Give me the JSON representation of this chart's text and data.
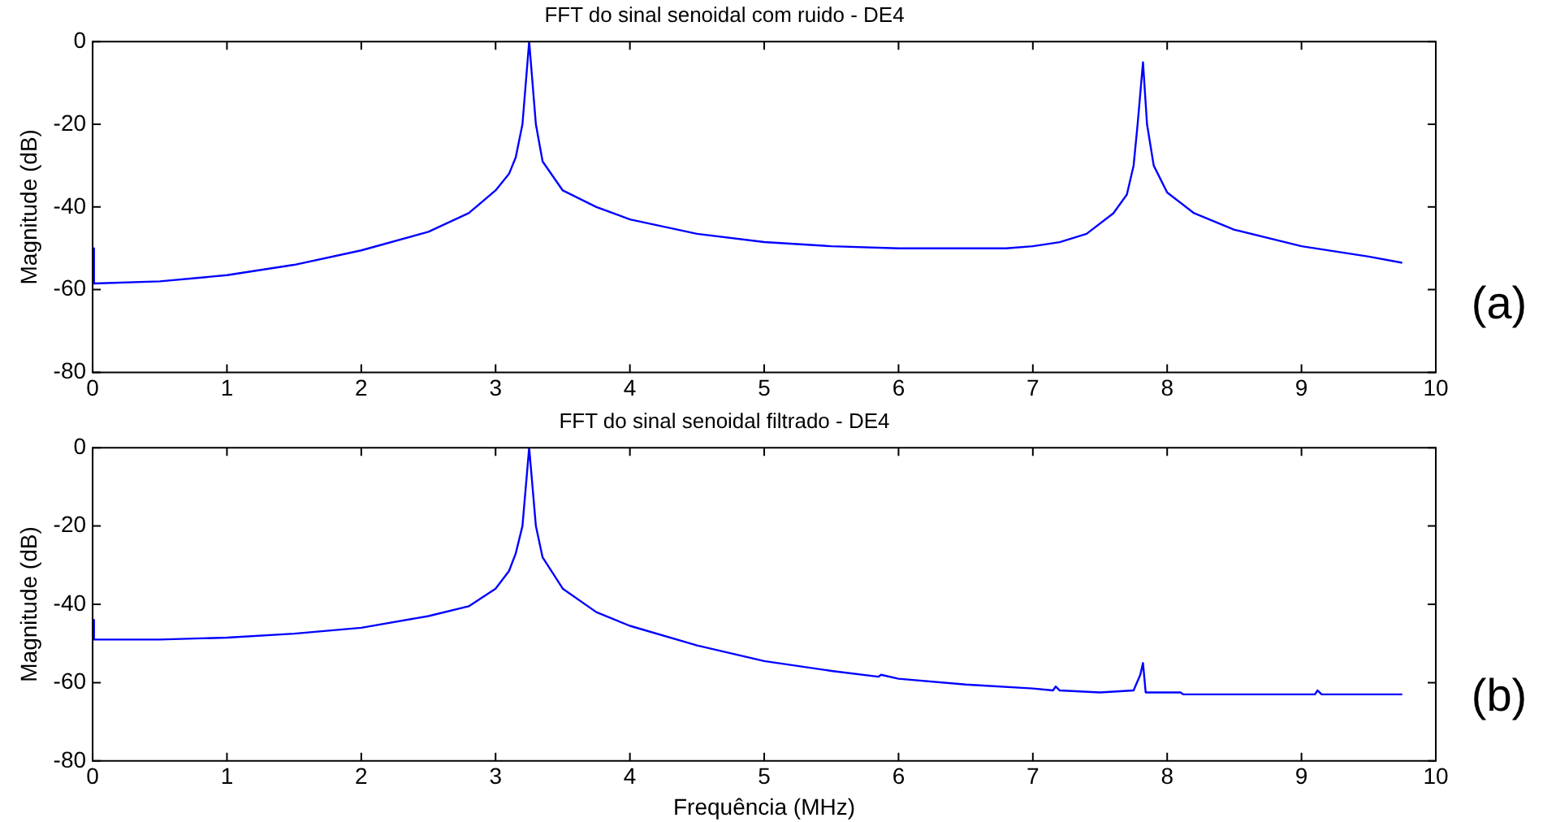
{
  "chart_data": [
    {
      "type": "line",
      "title": "FFT do sinal senoidal com ruido - DE4",
      "ylabel": "Magnitude (dB)",
      "annotations": [
        "(a)"
      ],
      "color": "#0000ff",
      "grid": false,
      "legend": false,
      "marker": "none",
      "line_style": "solid",
      "x": [
        0,
        0.01,
        0.5,
        1,
        1.5,
        2,
        2.5,
        2.8,
        3.0,
        3.1,
        3.15,
        3.2,
        3.25,
        3.3,
        3.35,
        3.5,
        3.75,
        4,
        4.5,
        5,
        5.5,
        6,
        6.5,
        6.8,
        7,
        7.2,
        7.4,
        7.6,
        7.7,
        7.75,
        7.78,
        7.82,
        7.85,
        7.9,
        8,
        8.2,
        8.5,
        9,
        9.5,
        9.75
      ],
      "values": [
        -50,
        -58.5,
        -58,
        -56.5,
        -54,
        -50.5,
        -46,
        -41.5,
        -36,
        -32,
        -28,
        -20,
        0,
        -20,
        -29,
        -36,
        -40,
        -43,
        -46.5,
        -48.5,
        -49.5,
        -50,
        -50,
        -50,
        -49.5,
        -48.5,
        -46.5,
        -41.5,
        -37,
        -30,
        -20,
        -5,
        -20,
        -30,
        -36.5,
        -41.5,
        -45.5,
        -49.5,
        -52,
        -53.5
      ],
      "xlim": [
        0,
        10
      ],
      "xticks": [
        0,
        1,
        2,
        3,
        4,
        5,
        6,
        7,
        8,
        9,
        10
      ],
      "ylim": [
        -80,
        0
      ],
      "yticks": [
        -80,
        -60,
        -40,
        -20,
        0
      ]
    },
    {
      "type": "line",
      "title": "FFT do sinal senoidal filtrado - DE4",
      "xlabel": "Frequência (MHz)",
      "ylabel": "Magnitude (dB)",
      "annotations": [
        "(b)"
      ],
      "color": "#0000ff",
      "grid": false,
      "legend": false,
      "marker": "none",
      "line_style": "solid",
      "x": [
        0,
        0.01,
        0.5,
        1,
        1.5,
        2,
        2.5,
        2.8,
        3.0,
        3.1,
        3.15,
        3.2,
        3.25,
        3.3,
        3.35,
        3.5,
        3.75,
        4,
        4.5,
        5,
        5.5,
        5.85,
        5.87,
        6,
        6.5,
        7,
        7.15,
        7.17,
        7.2,
        7.5,
        7.75,
        7.8,
        7.82,
        7.84,
        8.1,
        8.12,
        9.1,
        9.12,
        9.15,
        9.75
      ],
      "values": [
        -44,
        -49,
        -49,
        -48.5,
        -47.5,
        -46,
        -43,
        -40.5,
        -36,
        -31.5,
        -27,
        -20,
        0,
        -20,
        -28,
        -36,
        -42,
        -45.5,
        -50.5,
        -54.5,
        -57,
        -58.5,
        -58,
        -59,
        -60.5,
        -61.5,
        -62,
        -61,
        -62,
        -62.5,
        -62,
        -58,
        -55,
        -62.5,
        -62.5,
        -63,
        -63,
        -62,
        -63,
        -63
      ],
      "xlim": [
        0,
        10
      ],
      "xticks": [
        0,
        1,
        2,
        3,
        4,
        5,
        6,
        7,
        8,
        9,
        10
      ],
      "ylim": [
        -80,
        0
      ],
      "yticks": [
        -80,
        -60,
        -40,
        -20,
        0
      ]
    }
  ]
}
